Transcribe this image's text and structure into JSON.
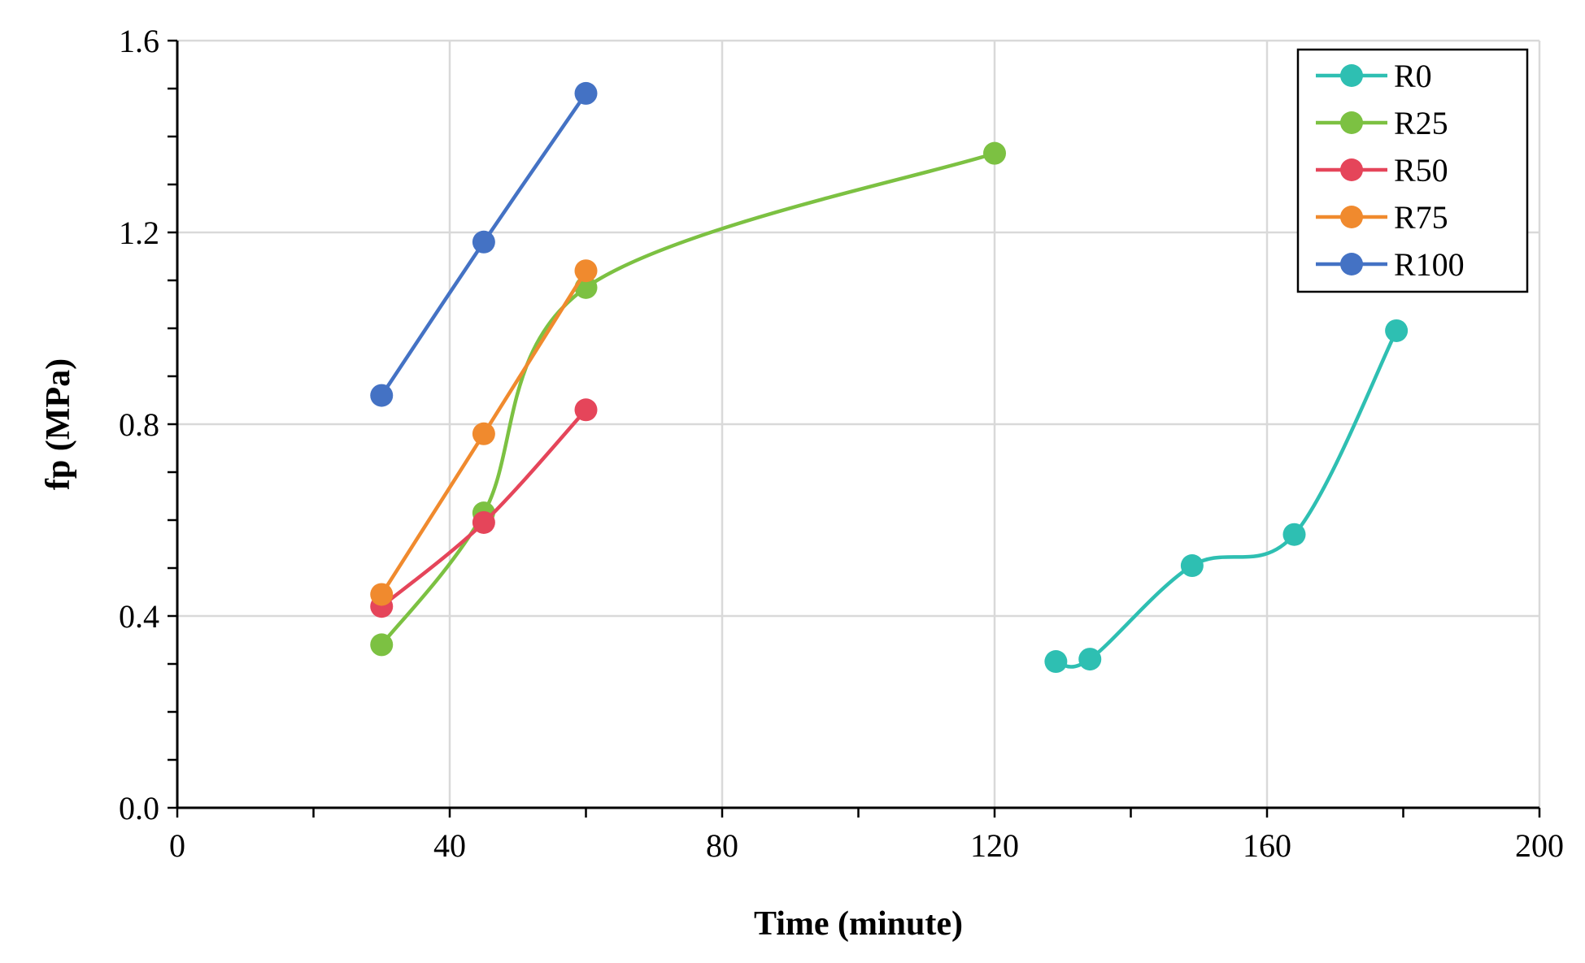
{
  "chart_data": {
    "type": "line",
    "title": "",
    "xlabel": "Time (minute)",
    "ylabel": "fp (MPa)",
    "xlim": [
      0,
      200
    ],
    "ylim": [
      0,
      1.6
    ],
    "x_major_ticks": [
      0,
      40,
      80,
      120,
      160,
      200
    ],
    "x_tick_labels": [
      "0",
      "40",
      "80",
      "120",
      "160",
      "200"
    ],
    "x_minor_ticks": [
      20,
      60,
      100,
      140,
      180
    ],
    "y_major_ticks": [
      0,
      0.4,
      0.8,
      1.2,
      1.6
    ],
    "y_tick_labels": [
      "0.0",
      "0.4",
      "0.8",
      "1.2",
      "1.6"
    ],
    "y_minor_ticks": [
      0.1,
      0.2,
      0.3,
      0.5,
      0.6,
      0.7,
      0.9,
      1.0,
      1.1,
      1.3,
      1.4,
      1.5
    ],
    "grid": true,
    "legend_position": "top-right",
    "smooth": true,
    "series": [
      {
        "name": "R0",
        "color": "#2ebfb2",
        "x": [
          129,
          134,
          149,
          164,
          179
        ],
        "y": [
          0.305,
          0.31,
          0.505,
          0.57,
          0.995
        ]
      },
      {
        "name": "R25",
        "color": "#7cc142",
        "x": [
          30,
          45,
          60,
          120
        ],
        "y": [
          0.34,
          0.615,
          1.085,
          1.365
        ]
      },
      {
        "name": "R50",
        "color": "#e5455a",
        "x": [
          30,
          45,
          60
        ],
        "y": [
          0.42,
          0.595,
          0.83
        ]
      },
      {
        "name": "R75",
        "color": "#f08a2e",
        "x": [
          30,
          45,
          60
        ],
        "y": [
          0.445,
          0.78,
          1.12
        ]
      },
      {
        "name": "R100",
        "color": "#4472c4",
        "x": [
          30,
          45,
          60
        ],
        "y": [
          0.86,
          1.18,
          1.49
        ]
      }
    ]
  }
}
